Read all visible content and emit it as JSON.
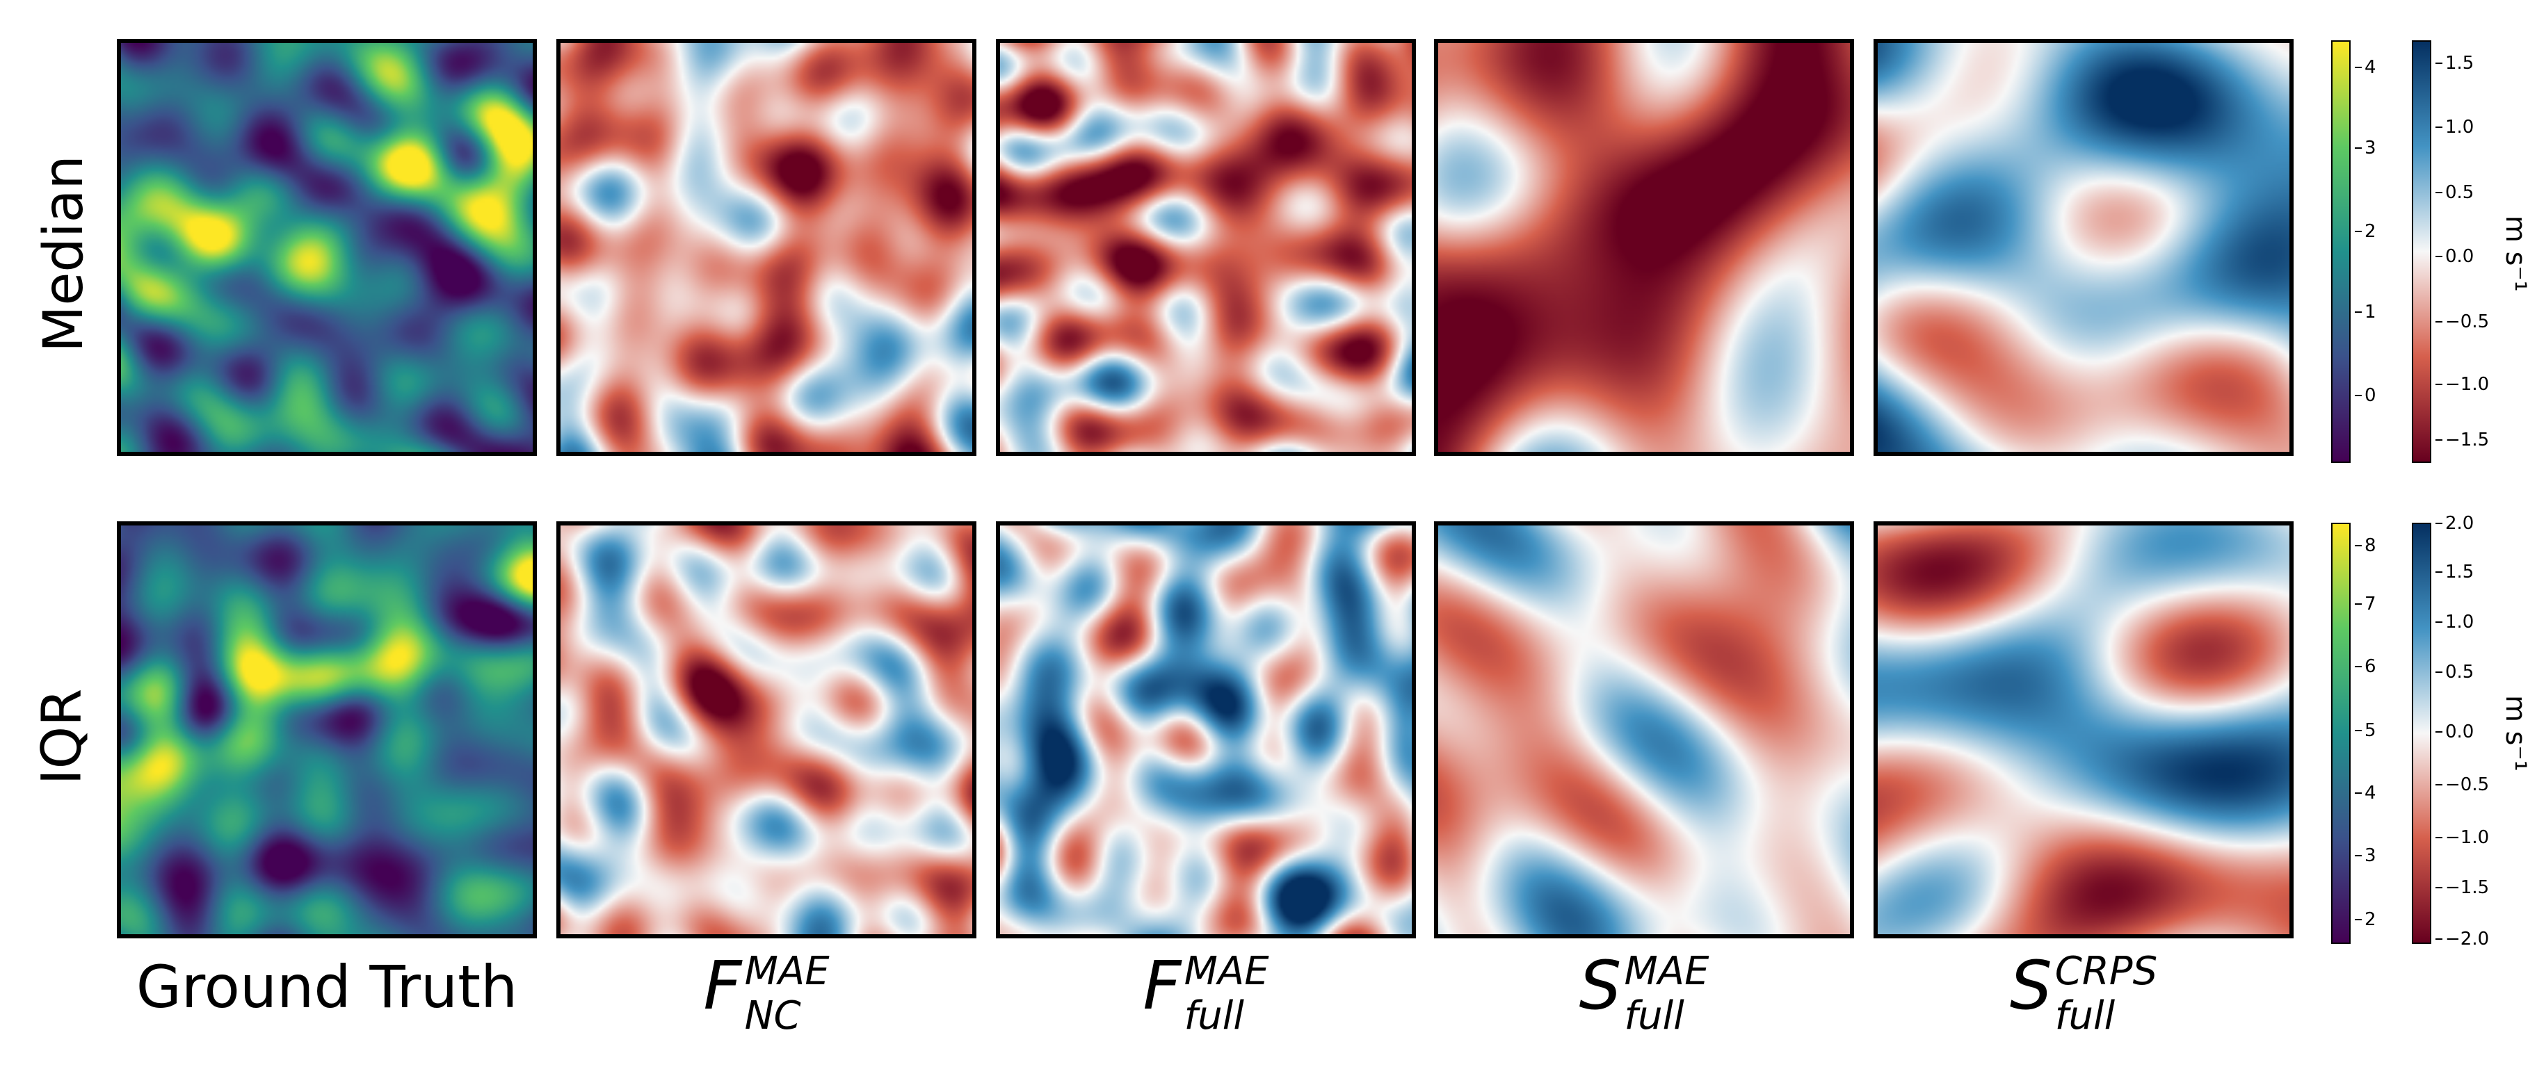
{
  "rows": [
    {
      "label": "Median"
    },
    {
      "label": "IQR"
    }
  ],
  "columns": [
    {
      "label": "Ground Truth",
      "kind": "text"
    },
    {
      "base": "F",
      "sup": "MAE",
      "sub": "NC"
    },
    {
      "base": "F",
      "sup": "MAE",
      "sub": "full"
    },
    {
      "base": "S",
      "sup": "MAE",
      "sub": "full"
    },
    {
      "base": "S",
      "sup": "CRPS",
      "sub": "full"
    }
  ],
  "colorbars": {
    "median": {
      "viridis_ticks": [
        "4",
        "3",
        "2",
        "1",
        "0"
      ],
      "rdbu_ticks": [
        "1.5",
        "1.0",
        "0.5",
        "0.0",
        "−0.5",
        "−1.0",
        "−1.5"
      ],
      "unit": "m s⁻¹"
    },
    "iqr": {
      "viridis_ticks": [
        "8",
        "7",
        "6",
        "5",
        "4",
        "3",
        "2"
      ],
      "rdbu_ticks": [
        "2.0",
        "1.5",
        "1.0",
        "0.5",
        "0.0",
        "−0.5",
        "−1.0",
        "−1.5",
        "−2.0"
      ],
      "unit": "m s⁻¹"
    }
  },
  "colors": {
    "viridis": [
      "#440154",
      "#3b528b",
      "#21918c",
      "#5ec962",
      "#fde725"
    ],
    "rdbu": [
      "#67001f",
      "#d6604d",
      "#f7f7f7",
      "#4393c3",
      "#053061"
    ]
  }
}
